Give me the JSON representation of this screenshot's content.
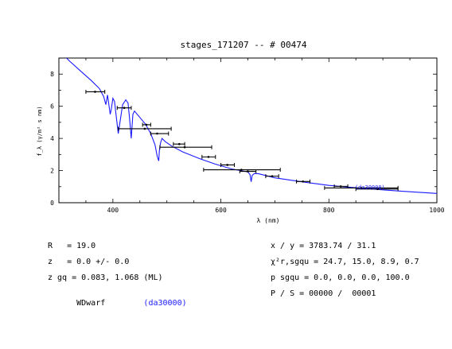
{
  "chart_data": {
    "type": "line",
    "title": "stages_171207 -- # 00474",
    "xlabel": "λ (nm)",
    "ylabel": "f_λ (γ/m² s nm)",
    "xlim": [
      300,
      1000
    ],
    "ylim": [
      0,
      9
    ],
    "x_ticks": [
      400,
      600,
      800,
      1000
    ],
    "y_ticks": [
      0,
      2,
      4,
      6,
      8
    ],
    "grid": false,
    "model_label": "(da30000)",
    "colors": {
      "model": "#1a1aff",
      "points": "#000000"
    },
    "series": [
      {
        "kind": "model-spectrum",
        "x": [
          305,
          320,
          340,
          360,
          375,
          383,
          387,
          390,
          395,
          397,
          400,
          403,
          410,
          418,
          424,
          428,
          431,
          434,
          437,
          440,
          450,
          460,
          470,
          478,
          482,
          485,
          486,
          488,
          491,
          497,
          510,
          530,
          560,
          590,
          620,
          640,
          650,
          654,
          656,
          658,
          662,
          670,
          700,
          750,
          800,
          850,
          900,
          950,
          1000
        ],
        "y": [
          9.3,
          8.8,
          8.2,
          7.6,
          7.1,
          6.6,
          6.1,
          6.7,
          5.5,
          5.8,
          6.5,
          6.3,
          4.3,
          6.1,
          6.4,
          6.2,
          5.2,
          4.0,
          5.5,
          5.7,
          5.3,
          4.9,
          4.3,
          3.6,
          2.9,
          2.6,
          3.2,
          3.7,
          4.0,
          3.8,
          3.5,
          3.15,
          2.75,
          2.4,
          2.1,
          1.98,
          1.92,
          1.75,
          1.3,
          1.7,
          1.82,
          1.8,
          1.55,
          1.3,
          1.08,
          0.93,
          0.8,
          0.68,
          0.58
        ]
      },
      {
        "kind": "photometry",
        "points": [
          {
            "x": 367,
            "y": 6.9,
            "xerr": [
              350,
              385
            ]
          },
          {
            "x": 421,
            "y": 5.9,
            "xerr": [
              408,
              434
            ]
          },
          {
            "x": 459,
            "y": 4.6,
            "xerr": [
              410,
              508
            ]
          },
          {
            "x": 462,
            "y": 4.85,
            "xerr": [
              455,
              470
            ]
          },
          {
            "x": 482,
            "y": 4.3,
            "xerr": [
              470,
              503
            ]
          },
          {
            "x": 523,
            "y": 3.65,
            "xerr": [
              512,
              533
            ]
          },
          {
            "x": 533,
            "y": 3.45,
            "xerr": [
              487,
              583
            ]
          },
          {
            "x": 577,
            "y": 2.85,
            "xerr": [
              565,
              590
            ]
          },
          {
            "x": 612,
            "y": 2.35,
            "xerr": [
              600,
              625
            ]
          },
          {
            "x": 638,
            "y": 2.05,
            "xerr": [
              568,
              710
            ]
          },
          {
            "x": 650,
            "y": 1.95,
            "xerr": [
              635,
              665
            ]
          },
          {
            "x": 695,
            "y": 1.65,
            "xerr": [
              683,
              707
            ]
          },
          {
            "x": 752,
            "y": 1.32,
            "xerr": [
              740,
              765
            ]
          },
          {
            "x": 822,
            "y": 1.02,
            "xerr": [
              810,
              835
            ]
          },
          {
            "x": 860,
            "y": 0.92,
            "xerr": [
              792,
              928
            ]
          },
          {
            "x": 890,
            "y": 0.85,
            "xerr": [
              850,
              928
            ]
          }
        ]
      }
    ]
  },
  "info": {
    "left": [
      {
        "text": "R   = 19.0"
      },
      {
        "text": "z   = 0.0 +/- 0.0"
      },
      {
        "text": "z gq = 0.083, 1.068 (ML)"
      },
      {
        "label": "WDwarf",
        "value": "(da30000)"
      }
    ],
    "right": [
      {
        "text": "x / y = 3783.74 / 31.1"
      },
      {
        "text": "χ²r,sgqu = 24.7, 15.0, 8.9, 0.7"
      },
      {
        "text": "p sgqu = 0.0, 0.0, 0.0, 100.0"
      },
      {
        "text": "P / S = 00000 /  00001"
      }
    ]
  }
}
